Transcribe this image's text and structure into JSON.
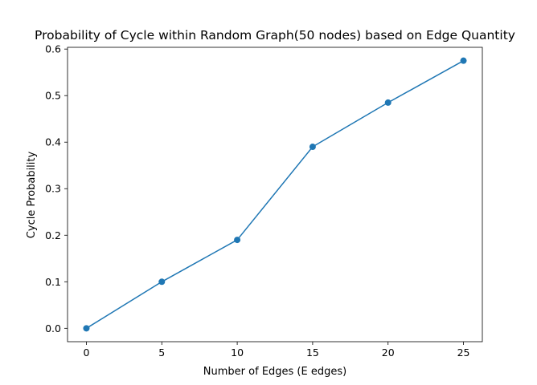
{
  "chart_data": {
    "type": "line",
    "title": "Probability of Cycle within Random Graph(50 nodes) based on Edge Quantity",
    "xlabel": "Number of Edges (E edges)",
    "ylabel": "Cycle Probability",
    "x": [
      0,
      5,
      10,
      15,
      20,
      25
    ],
    "y": [
      0.0,
      0.1,
      0.19,
      0.39,
      0.485,
      0.575
    ],
    "xlim": [
      -1.25,
      26.25
    ],
    "ylim": [
      -0.02875,
      0.60375
    ],
    "xticks": [
      0,
      5,
      10,
      15,
      20,
      25
    ],
    "xtick_labels": [
      "0",
      "5",
      "10",
      "15",
      "20",
      "25"
    ],
    "yticks": [
      0.0,
      0.1,
      0.2,
      0.3,
      0.4,
      0.5,
      0.6
    ],
    "ytick_labels": [
      "0.0",
      "0.1",
      "0.2",
      "0.3",
      "0.4",
      "0.5",
      "0.6"
    ],
    "grid": false,
    "markers": "circle",
    "color": "#1f77b4"
  }
}
